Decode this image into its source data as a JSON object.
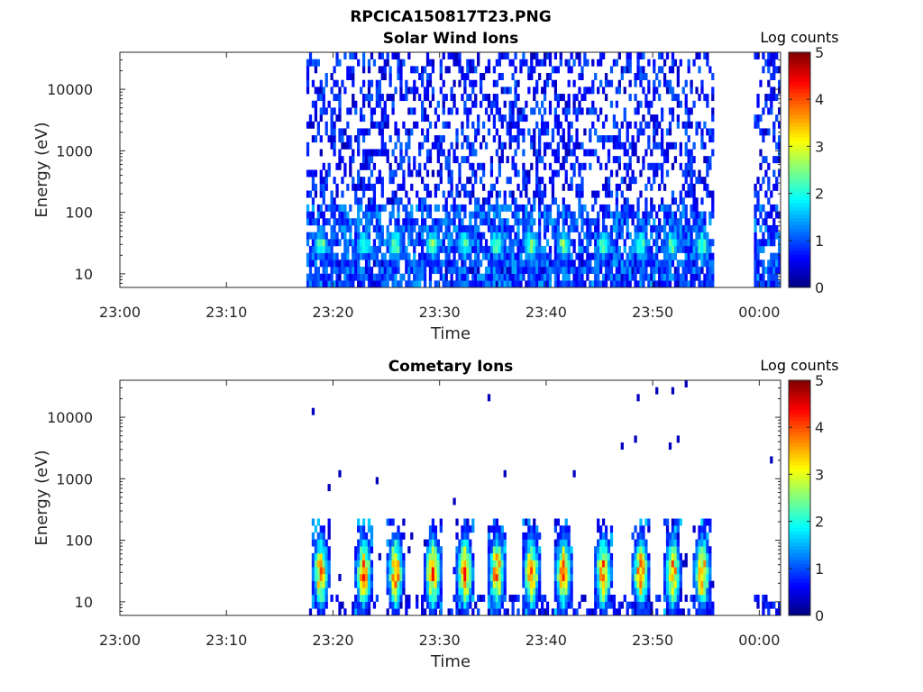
{
  "figure": {
    "title": "RPCICA150817T23.PNG"
  },
  "chart_data": [
    {
      "type": "heatmap",
      "title": "Solar Wind Ions",
      "xlabel": "Time",
      "ylabel": "Energy (eV)",
      "x_ticks": [
        "23:00",
        "23:10",
        "23:20",
        "23:30",
        "23:40",
        "23:50",
        "00:00"
      ],
      "y_ticks": [
        "10",
        "100",
        "1000",
        "10000"
      ],
      "y_scale": "log",
      "ylim_eV": [
        6,
        40000
      ],
      "xlim": [
        "23:00",
        "00:02"
      ],
      "data_intervals": [
        [
          "23:17:30",
          "23:55:45"
        ],
        [
          "23:59:30",
          "00:02:00"
        ]
      ],
      "colorbar": {
        "label": "Log counts",
        "ticks": [
          "0",
          "1",
          "2",
          "3",
          "4",
          "5"
        ],
        "range": [
          0,
          5
        ],
        "colormap": "jet"
      },
      "enhancement_times": [
        "23:18:45",
        "23:22:45",
        "23:25:45",
        "23:29:15",
        "23:32:15",
        "23:35:15",
        "23:38:30",
        "23:41:30",
        "23:45:15",
        "23:48:45",
        "23:51:45",
        "23:54:30"
      ],
      "background_energy_eV": [
        6,
        40000
      ],
      "peak_energy_eV": 30,
      "peak_log_counts": 2.7
    },
    {
      "type": "heatmap",
      "title": "Cometary Ions",
      "xlabel": "Time",
      "ylabel": "Energy (eV)",
      "x_ticks": [
        "23:00",
        "23:10",
        "23:20",
        "23:30",
        "23:40",
        "23:50",
        "00:00"
      ],
      "y_ticks": [
        "10",
        "100",
        "1000",
        "10000"
      ],
      "y_scale": "log",
      "ylim_eV": [
        6,
        40000
      ],
      "xlim": [
        "23:00",
        "00:02"
      ],
      "data_intervals": [
        [
          "23:17:30",
          "23:55:45"
        ],
        [
          "23:59:30",
          "00:02:00"
        ]
      ],
      "colorbar": {
        "label": "Log counts",
        "ticks": [
          "0",
          "1",
          "2",
          "3",
          "4",
          "5"
        ],
        "range": [
          0,
          5
        ],
        "colormap": "jet"
      },
      "enhancement_times": [
        "23:18:45",
        "23:22:45",
        "23:25:45",
        "23:29:15",
        "23:32:15",
        "23:35:15",
        "23:38:30",
        "23:41:30",
        "23:45:15",
        "23:48:45",
        "23:51:45",
        "23:54:30"
      ],
      "peak_energy_eV": 30,
      "peak_log_counts": 3.8
    }
  ]
}
